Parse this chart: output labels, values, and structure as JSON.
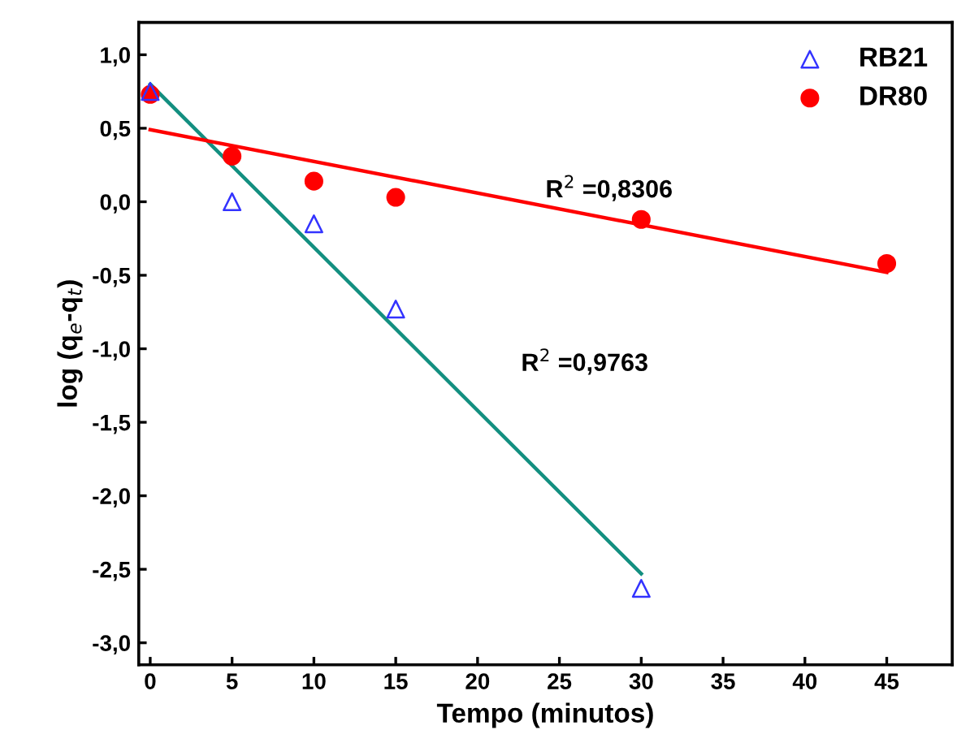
{
  "chart_data": {
    "type": "scatter",
    "xlabel": "Tempo (minutos)",
    "ylabel": "log (q$_{e}$-q$_{t}$)",
    "xlim": [
      -0.7,
      49
    ],
    "ylim": [
      -3.15,
      1.22
    ],
    "xticks": [
      0,
      5,
      10,
      15,
      20,
      25,
      30,
      35,
      40,
      45
    ],
    "yticks": [
      {
        "value": 1.0,
        "label": "1,0"
      },
      {
        "value": 0.5,
        "label": "0,5"
      },
      {
        "value": 0.0,
        "label": "0,0"
      },
      {
        "value": -0.5,
        "label": "-0,5"
      },
      {
        "value": -1.0,
        "label": "-1,0"
      },
      {
        "value": -1.5,
        "label": "-1,5"
      },
      {
        "value": -2.0,
        "label": "-2,0"
      },
      {
        "value": -2.5,
        "label": "-2,5"
      },
      {
        "value": -3.0,
        "label": "-3,0"
      }
    ],
    "grid": false,
    "legend": "top right",
    "series": [
      {
        "name": "RB21",
        "marker": "triangle",
        "color": "#3333ff",
        "x": [
          0,
          5,
          10,
          15,
          30
        ],
        "values": [
          0.75,
          0.0,
          -0.15,
          -0.73,
          -2.63
        ]
      },
      {
        "name": "DR80",
        "marker": "circle",
        "color": "#ff0000",
        "x": [
          0,
          5,
          10,
          15,
          30,
          45
        ],
        "values": [
          0.73,
          0.31,
          0.14,
          0.03,
          -0.12,
          -0.42
        ]
      },
      {
        "type": "line",
        "color": "#138f80",
        "x": [
          0,
          30
        ],
        "values": [
          0.8,
          -2.53
        ]
      },
      {
        "type": "line",
        "color": "#ff0000",
        "x": [
          0,
          45
        ],
        "values": [
          0.49,
          -0.48
        ]
      }
    ],
    "annotations": [
      "R$^{2}$ =0,8306",
      "R$^{2}$ =0,9763"
    ]
  }
}
